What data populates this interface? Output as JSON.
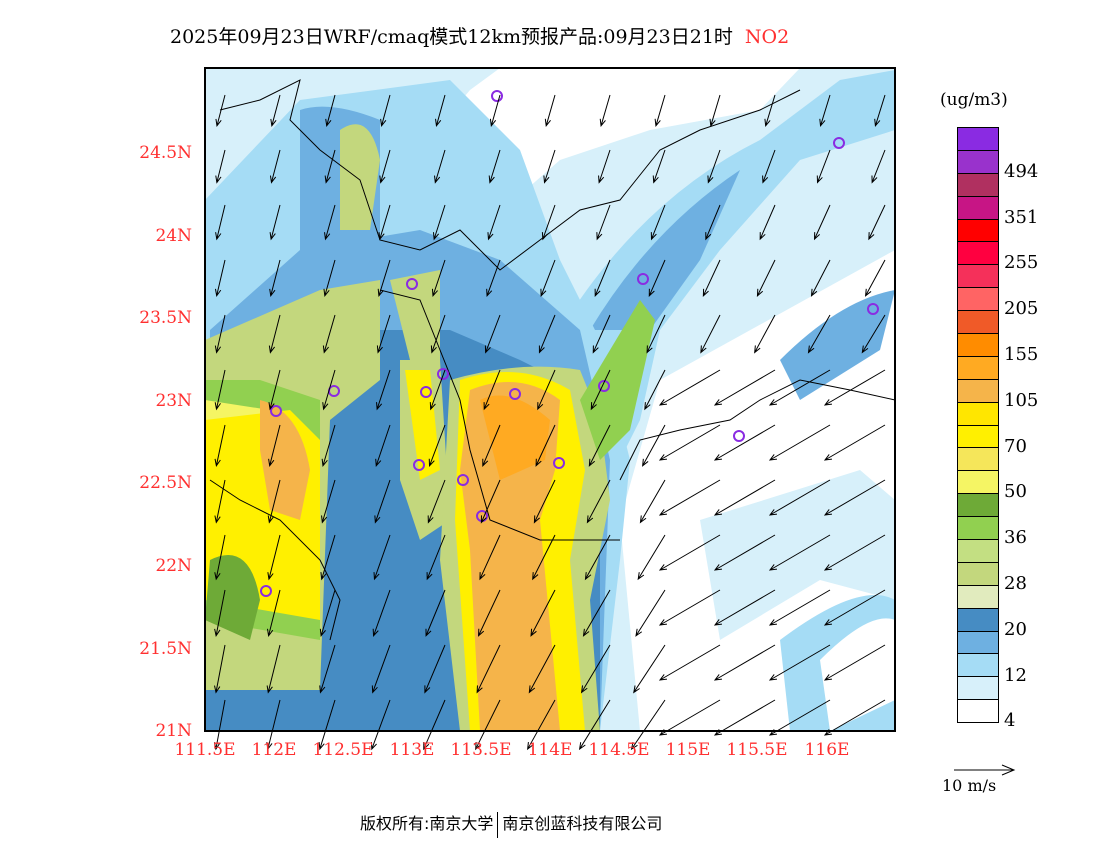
{
  "title": {
    "main": "2025年09月23日WRF/cmaq模式12km预报产品:09月23日21时",
    "species": "NO2"
  },
  "axes": {
    "x_ticks": [
      "111.5E",
      "112E",
      "112.5E",
      "113E",
      "113.5E",
      "114E",
      "114.5E",
      "115E",
      "115.5E",
      "116E"
    ],
    "y_ticks": [
      "24.5N",
      "24N",
      "23.5N",
      "23N",
      "22.5N",
      "22N",
      "21.5N",
      "21N"
    ]
  },
  "colorbar": {
    "unit": "(ug/m3)",
    "colors": [
      "#8a2be2",
      "#9932cc",
      "#b03060",
      "#c71585",
      "#ff0000",
      "#ff0040",
      "#f5305a",
      "#ff6464",
      "#f05a28",
      "#ff8c00",
      "#ffaa22",
      "#f5b44a",
      "#ffe600",
      "#fff000",
      "#f5e65a",
      "#f5f564",
      "#6eaa37",
      "#91d050",
      "#c3df82",
      "#c3d77d",
      "#e1ebbe",
      "#468cc3",
      "#6eb0e1",
      "#a5dcf5",
      "#d7f0fa",
      "#ffffff"
    ],
    "labels": [
      "494",
      "351",
      "255",
      "205",
      "155",
      "105",
      "70",
      "50",
      "36",
      "28",
      "20",
      "12",
      "4"
    ]
  },
  "wind_legend": "10 m/s",
  "footer": {
    "left": "版权所有:南京大学",
    "right": "南京创蓝科技有限公司"
  }
}
